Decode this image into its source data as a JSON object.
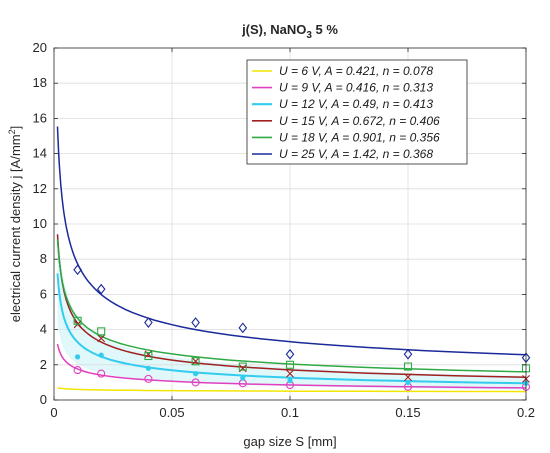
{
  "chart_data": {
    "type": "scatter",
    "title": "j(S), NaNO",
    "title_sub": "3",
    "title_suffix": " 5 %",
    "xlabel": "gap size S [mm]",
    "ylabel_main": "electrical current density j [A/mm",
    "ylabel_sup": "2",
    "ylabel_end": "]",
    "xlim": [
      0,
      0.2
    ],
    "ylim": [
      0,
      20
    ],
    "x_ticks": [
      0,
      0.05,
      0.1,
      0.15,
      0.2
    ],
    "x_tick_labels": [
      "0",
      "0.05",
      "0.1",
      "0.15",
      "0.2"
    ],
    "y_ticks": [
      0,
      2,
      4,
      6,
      8,
      10,
      12,
      14,
      16,
      18,
      20
    ],
    "y_tick_labels": [
      "0",
      "2",
      "4",
      "6",
      "8",
      "10",
      "12",
      "14",
      "16",
      "18",
      "20"
    ],
    "grid": true,
    "legend_position": "top-right",
    "fit_model": "j = A * S^(-n)",
    "series": [
      {
        "name": "U = 6 V, A = 0.421, n = 0.078",
        "U": 6,
        "A": 0.421,
        "n": 0.078,
        "color": "#f2e600",
        "marker": "none",
        "x": [
          0.01,
          0.02,
          0.04,
          0.06,
          0.08,
          0.1,
          0.15,
          0.2
        ],
        "y": [
          0.65,
          0.55,
          0.5,
          0.5,
          0.5,
          0.5,
          0.5,
          0.5
        ]
      },
      {
        "name": "U = 9 V, A = 0.416, n = 0.313",
        "U": 9,
        "A": 0.416,
        "n": 0.313,
        "color": "#e040c0",
        "marker": "circle",
        "x": [
          0.01,
          0.02,
          0.04,
          0.06,
          0.08,
          0.1,
          0.15,
          0.2
        ],
        "y": [
          1.7,
          1.5,
          1.2,
          1.0,
          0.95,
          0.85,
          0.75,
          0.75
        ]
      },
      {
        "name": "U = 12 V, A = 0.49, n = 0.413",
        "U": 12,
        "A": 0.49,
        "n": 0.413,
        "color": "#33ccee",
        "marker": "dot",
        "x": [
          0.01,
          0.02,
          0.04,
          0.06,
          0.08,
          0.1,
          0.15,
          0.2
        ],
        "y": [
          2.45,
          2.55,
          1.8,
          1.5,
          1.25,
          1.1,
          1.0,
          0.95
        ]
      },
      {
        "name": "U = 15 V, A = 0.672, n = 0.406",
        "U": 15,
        "A": 0.672,
        "n": 0.406,
        "color": "#a02020",
        "marker": "x",
        "x": [
          0.01,
          0.02,
          0.04,
          0.06,
          0.08,
          0.1,
          0.15,
          0.2
        ],
        "y": [
          4.3,
          3.5,
          2.6,
          2.2,
          1.8,
          1.5,
          1.3,
          1.2
        ]
      },
      {
        "name": "U = 18 V, A = 0.901, n = 0.356",
        "U": 18,
        "A": 0.901,
        "n": 0.356,
        "color": "#2eaa44",
        "marker": "square",
        "x": [
          0.01,
          0.02,
          0.04,
          0.06,
          0.08,
          0.1,
          0.15,
          0.2
        ],
        "y": [
          4.5,
          3.9,
          2.5,
          2.2,
          1.9,
          2.0,
          1.9,
          1.8
        ]
      },
      {
        "name": "U = 25 V, A = 1.42, n = 0.368",
        "U": 25,
        "A": 1.42,
        "n": 0.368,
        "color": "#1a2a99",
        "marker": "diamond",
        "x": [
          0.01,
          0.02,
          0.04,
          0.06,
          0.08,
          0.1,
          0.15,
          0.2
        ],
        "y": [
          7.4,
          6.3,
          4.4,
          4.4,
          4.1,
          2.6,
          2.6,
          2.4
        ]
      }
    ]
  }
}
